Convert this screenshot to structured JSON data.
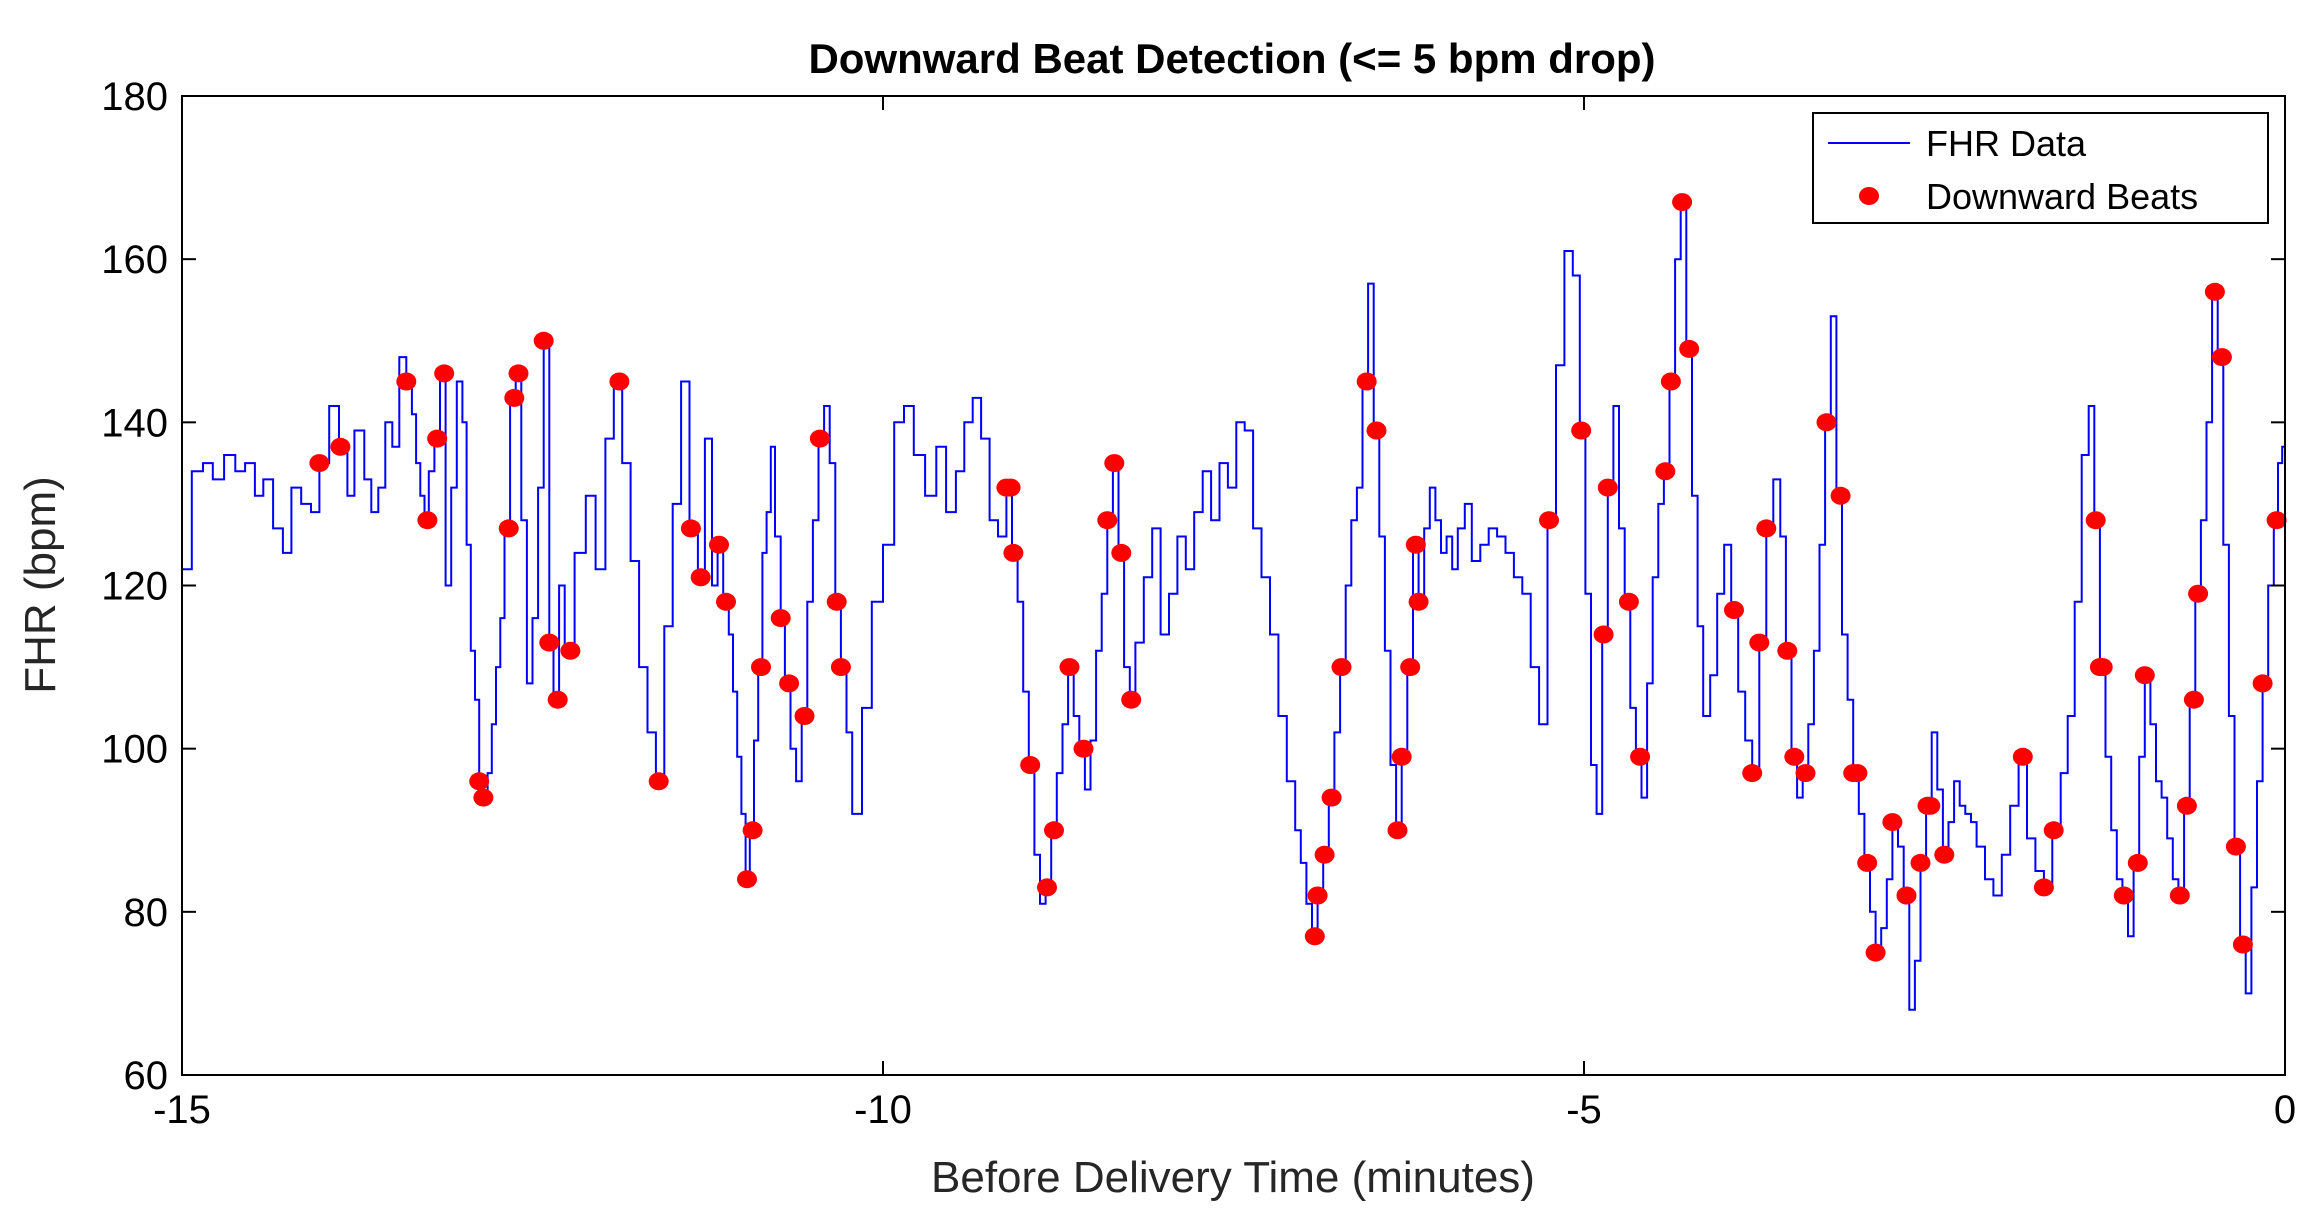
{
  "chart_data": {
    "type": "line",
    "title": "Downward Beat Detection (<= 5 bpm drop)",
    "xlabel": "Before Delivery Time (minutes)",
    "ylabel": "FHR (bpm)",
    "xlim": [
      -15,
      0
    ],
    "ylim": [
      60,
      180
    ],
    "xticks": [
      -15,
      -10,
      -5,
      0
    ],
    "yticks": [
      60,
      80,
      100,
      120,
      140,
      160,
      180
    ],
    "grid": false,
    "legend_location": "top-right",
    "colors": {
      "line": "#0000ff",
      "marker": "#ff0000",
      "axis": "#000000"
    },
    "series": [
      {
        "name": "FHR Data",
        "style": "line",
        "x": [
          -15.0,
          -14.93,
          -14.85,
          -14.78,
          -14.7,
          -14.62,
          -14.55,
          -14.48,
          -14.42,
          -14.35,
          -14.28,
          -14.22,
          -14.15,
          -14.08,
          -14.02,
          -13.95,
          -13.88,
          -13.82,
          -13.77,
          -13.7,
          -13.65,
          -13.6,
          -13.55,
          -13.5,
          -13.45,
          -13.4,
          -13.36,
          -13.33,
          -13.3,
          -13.27,
          -13.24,
          -13.2,
          -13.16,
          -13.12,
          -13.08,
          -13.04,
          -13.0,
          -12.97,
          -12.94,
          -12.91,
          -12.88,
          -12.85,
          -12.82,
          -12.79,
          -12.76,
          -12.73,
          -12.7,
          -12.66,
          -12.62,
          -12.58,
          -12.54,
          -12.5,
          -12.46,
          -12.42,
          -12.38,
          -12.35,
          -12.31,
          -12.27,
          -12.2,
          -12.12,
          -12.05,
          -11.98,
          -11.92,
          -11.86,
          -11.8,
          -11.74,
          -11.68,
          -11.62,
          -11.56,
          -11.5,
          -11.44,
          -11.38,
          -11.32,
          -11.27,
          -11.22,
          -11.18,
          -11.14,
          -11.1,
          -11.07,
          -11.04,
          -11.01,
          -10.98,
          -10.95,
          -10.92,
          -10.89,
          -10.86,
          -10.83,
          -10.8,
          -10.77,
          -10.73,
          -10.7,
          -10.66,
          -10.62,
          -10.58,
          -10.54,
          -10.5,
          -10.46,
          -10.42,
          -10.38,
          -10.34,
          -10.3,
          -10.26,
          -10.22,
          -10.15,
          -10.08,
          -10.0,
          -9.92,
          -9.85,
          -9.78,
          -9.7,
          -9.62,
          -9.55,
          -9.48,
          -9.42,
          -9.36,
          -9.3,
          -9.24,
          -9.18,
          -9.12,
          -9.08,
          -9.04,
          -9.0,
          -8.96,
          -8.92,
          -8.88,
          -8.84,
          -8.8,
          -8.76,
          -8.72,
          -8.68,
          -8.64,
          -8.6,
          -8.56,
          -8.52,
          -8.48,
          -8.44,
          -8.4,
          -8.36,
          -8.32,
          -8.28,
          -8.24,
          -8.2,
          -8.14,
          -8.08,
          -8.02,
          -7.96,
          -7.9,
          -7.84,
          -7.78,
          -7.72,
          -7.66,
          -7.6,
          -7.54,
          -7.48,
          -7.42,
          -7.36,
          -7.3,
          -7.24,
          -7.18,
          -7.12,
          -7.06,
          -7.02,
          -6.98,
          -6.94,
          -6.9,
          -6.86,
          -6.82,
          -6.78,
          -6.74,
          -6.7,
          -6.66,
          -6.62,
          -6.58,
          -6.54,
          -6.5,
          -6.46,
          -6.42,
          -6.38,
          -6.34,
          -6.3,
          -6.26,
          -6.22,
          -6.18,
          -6.14,
          -6.1,
          -6.06,
          -6.02,
          -5.98,
          -5.94,
          -5.9,
          -5.85,
          -5.8,
          -5.74,
          -5.68,
          -5.62,
          -5.56,
          -5.5,
          -5.44,
          -5.38,
          -5.32,
          -5.26,
          -5.2,
          -5.14,
          -5.08,
          -5.03,
          -4.99,
          -4.95,
          -4.91,
          -4.87,
          -4.83,
          -4.79,
          -4.75,
          -4.71,
          -4.67,
          -4.63,
          -4.59,
          -4.55,
          -4.51,
          -4.47,
          -4.43,
          -4.39,
          -4.35,
          -4.31,
          -4.27,
          -4.23,
          -4.19,
          -4.15,
          -4.1,
          -4.05,
          -4.0,
          -3.95,
          -3.9,
          -3.85,
          -3.8,
          -3.75,
          -3.7,
          -3.65,
          -3.6,
          -3.56,
          -3.52,
          -3.48,
          -3.44,
          -3.4,
          -3.36,
          -3.32,
          -3.28,
          -3.24,
          -3.2,
          -3.16,
          -3.12,
          -3.08,
          -3.04,
          -3.0,
          -2.96,
          -2.92,
          -2.88,
          -2.84,
          -2.8,
          -2.76,
          -2.72,
          -2.68,
          -2.64,
          -2.6,
          -2.56,
          -2.52,
          -2.48,
          -2.44,
          -2.4,
          -2.36,
          -2.32,
          -2.28,
          -2.24,
          -2.2,
          -2.14,
          -2.08,
          -2.02,
          -1.96,
          -1.9,
          -1.84,
          -1.78,
          -1.72,
          -1.66,
          -1.6,
          -1.55,
          -1.5,
          -1.45,
          -1.4,
          -1.36,
          -1.32,
          -1.28,
          -1.24,
          -1.2,
          -1.16,
          -1.12,
          -1.08,
          -1.04,
          -1.0,
          -0.96,
          -0.92,
          -0.88,
          -0.84,
          -0.8,
          -0.76,
          -0.72,
          -0.68,
          -0.64,
          -0.6,
          -0.56,
          -0.52,
          -0.48,
          -0.44,
          -0.4,
          -0.36,
          -0.32,
          -0.28,
          -0.24,
          -0.2,
          -0.16,
          -0.12,
          -0.08,
          -0.05,
          -0.02,
          0.0
        ],
        "y": [
          122,
          134,
          135,
          133,
          136,
          134,
          135,
          131,
          133,
          127,
          124,
          132,
          130,
          129,
          135,
          142,
          137,
          131,
          139,
          133,
          129,
          132,
          140,
          137,
          148,
          145,
          141,
          135,
          131,
          128,
          134,
          138,
          146,
          120,
          132,
          145,
          140,
          125,
          112,
          106,
          96,
          94,
          97,
          103,
          110,
          116,
          127,
          143,
          146,
          128,
          108,
          116,
          132,
          150,
          113,
          106,
          120,
          112,
          124,
          131,
          122,
          138,
          145,
          135,
          123,
          110,
          102,
          96,
          115,
          130,
          145,
          127,
          121,
          138,
          120,
          125,
          118,
          114,
          107,
          99,
          92,
          84,
          90,
          101,
          110,
          124,
          129,
          137,
          126,
          116,
          108,
          100,
          96,
          104,
          118,
          128,
          138,
          142,
          135,
          118,
          110,
          102,
          92,
          105,
          118,
          125,
          140,
          142,
          136,
          131,
          137,
          129,
          134,
          140,
          143,
          138,
          128,
          126,
          132,
          124,
          118,
          107,
          98,
          87,
          81,
          83,
          90,
          97,
          103,
          110,
          104,
          100,
          95,
          101,
          112,
          119,
          128,
          135,
          124,
          110,
          106,
          113,
          121,
          127,
          114,
          119,
          126,
          122,
          129,
          134,
          128,
          135,
          132,
          140,
          139,
          127,
          121,
          114,
          104,
          96,
          90,
          86,
          81,
          77,
          82,
          87,
          94,
          102,
          110,
          120,
          128,
          132,
          145,
          157,
          139,
          126,
          112,
          98,
          90,
          99,
          110,
          125,
          118,
          127,
          132,
          128,
          124,
          126,
          122,
          127,
          130,
          123,
          125,
          127,
          126,
          124,
          121,
          119,
          110,
          103,
          128,
          147,
          161,
          158,
          139,
          119,
          98,
          92,
          114,
          132,
          142,
          127,
          118,
          105,
          99,
          94,
          108,
          121,
          130,
          134,
          145,
          160,
          167,
          149,
          131,
          115,
          104,
          109,
          119,
          125,
          117,
          107,
          101,
          97,
          113,
          127,
          133,
          126,
          112,
          99,
          94,
          97,
          103,
          112,
          125,
          140,
          153,
          131,
          114,
          106,
          97,
          92,
          86,
          80,
          75,
          78,
          84,
          91,
          88,
          82,
          68,
          74,
          86,
          93,
          102,
          95,
          87,
          91,
          96,
          93,
          92,
          91,
          88,
          84,
          82,
          87,
          93,
          99,
          89,
          85,
          83,
          90,
          97,
          104,
          118,
          136,
          142,
          128,
          110,
          99,
          90,
          84,
          82,
          77,
          86,
          99,
          109,
          103,
          96,
          94,
          89,
          84,
          82,
          93,
          106,
          119,
          128,
          140,
          156,
          148,
          125,
          104,
          88,
          76,
          70,
          83,
          96,
          108,
          120,
          128,
          135,
          137,
          137
        ]
      },
      {
        "name": "Downward Beats",
        "style": "markers",
        "x": [
          -14.02,
          -13.87,
          -13.4,
          -13.25,
          -13.18,
          -13.13,
          -12.88,
          -12.85,
          -12.67,
          -12.63,
          -12.6,
          -12.42,
          -12.38,
          -12.32,
          -12.23,
          -11.88,
          -11.6,
          -11.37,
          -11.3,
          -11.17,
          -11.12,
          -10.97,
          -10.93,
          -10.87,
          -10.73,
          -10.67,
          -10.56,
          -10.45,
          -10.33,
          -10.3,
          -9.12,
          -9.09,
          -9.07,
          -8.95,
          -8.83,
          -8.78,
          -8.67,
          -8.57,
          -8.4,
          -8.35,
          -8.3,
          -8.23,
          -6.92,
          -6.9,
          -6.85,
          -6.8,
          -6.73,
          -6.55,
          -6.48,
          -6.33,
          -6.3,
          -6.24,
          -6.2,
          -6.18,
          -5.25,
          -5.02,
          -4.86,
          -4.83,
          -4.68,
          -4.6,
          -4.42,
          -4.38,
          -4.3,
          -4.25,
          -3.93,
          -3.8,
          -3.75,
          -3.7,
          -3.55,
          -3.5,
          -3.42,
          -3.27,
          -3.17,
          -3.08,
          -3.05,
          -2.98,
          -2.92,
          -2.8,
          -2.7,
          -2.6,
          -2.55,
          -2.53,
          -2.43,
          -1.87,
          -1.72,
          -1.65,
          -1.35,
          -1.32,
          -1.3,
          -1.15,
          -1.05,
          -1.0,
          -0.75,
          -0.7,
          -0.65,
          -0.62,
          -0.5,
          -0.45,
          -0.35,
          -0.3,
          -0.16,
          -0.06
        ]
      }
    ]
  },
  "legend": {
    "items": [
      {
        "label": "FHR Data"
      },
      {
        "label": "Downward Beats"
      }
    ]
  }
}
